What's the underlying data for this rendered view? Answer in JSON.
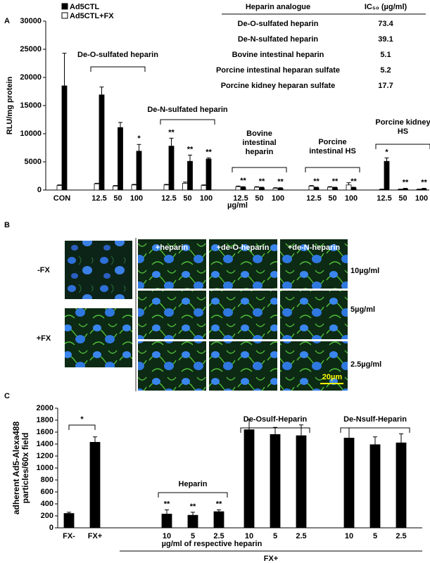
{
  "panel_labels": [
    "A",
    "B",
    "C"
  ],
  "ic50_table": {
    "columns": [
      "Heparin analogue",
      "IC₅₀ (µg/ml)"
    ],
    "rows": [
      [
        "De-O-sulfated heparin",
        "73.4"
      ],
      [
        "De-N-sulfated heparin",
        "39.1"
      ],
      [
        "Bovine intestinal heparin",
        "5.1"
      ],
      [
        "Porcine intestinal heparan sulfate",
        "5.2"
      ],
      [
        "Porcine kidney heparan sulfate",
        "17.7"
      ]
    ]
  },
  "images": {
    "left_row_labels": [
      "-FX",
      "+FX"
    ],
    "column_labels": [
      "+heparin",
      "+de-O-heparin",
      "+de-N-heparin"
    ],
    "row_labels": [
      "10µg/ml",
      "5µg/ml",
      "2.5µg/ml"
    ],
    "scale_bar": "20µm"
  },
  "chart_data": [
    {
      "type": "bar",
      "ylabel": "RLU/mg protein",
      "xlabel": "µg/ml",
      "ylim": [
        0,
        30000
      ],
      "yticks": [
        0,
        5000,
        10000,
        15000,
        20000,
        25000,
        30000
      ],
      "groups": [
        {
          "name": null,
          "categories": [
            "CON"
          ]
        },
        {
          "name": "De-O-sulfated heparin",
          "categories": [
            "12.5",
            "50",
            "100"
          ]
        },
        {
          "name": "De-N-sulfated heparin",
          "categories": [
            "12.5",
            "50",
            "100"
          ]
        },
        {
          "name": "Bovine intestinal heparin",
          "categories": [
            "12.5",
            "50",
            "100"
          ]
        },
        {
          "name": "Porcine intestinal HS",
          "categories": [
            "12.5",
            "50",
            "100"
          ]
        },
        {
          "name": "Porcine kidney HS",
          "categories": [
            "12.5",
            "50",
            "100"
          ]
        }
      ],
      "series": [
        {
          "name": "Ad5CTL",
          "color": "#000000",
          "values": [
            18500,
            16900,
            11100,
            6900,
            7800,
            5100,
            5500,
            500,
            400,
            300,
            400,
            400,
            400,
            5100,
            200,
            200
          ],
          "errors": [
            5800,
            1400,
            900,
            1200,
            1400,
            1100,
            200,
            100,
            100,
            100,
            100,
            100,
            100,
            600,
            100,
            100
          ],
          "significance": [
            null,
            null,
            null,
            "*",
            "**",
            "**",
            "**",
            "**",
            "**",
            "**",
            "**",
            "**",
            "**",
            "*",
            "**",
            "**"
          ]
        },
        {
          "name": "Ad5CTL+FX",
          "color": "#ffffff",
          "values": [
            800,
            1100,
            700,
            900,
            900,
            1200,
            800,
            600,
            500,
            300,
            700,
            500,
            900,
            100,
            100,
            100
          ],
          "errors": [
            100,
            100,
            100,
            100,
            100,
            200,
            100,
            100,
            100,
            100,
            100,
            100,
            400,
            50,
            50,
            50
          ]
        }
      ]
    },
    {
      "type": "bar",
      "ylabel": "adherent Ad5-Alexa488 particles/60x field",
      "xlabel": "µg/ml of respective heparin",
      "x_group_label": "FX+",
      "ylim": [
        0,
        2000
      ],
      "yticks": [
        0,
        200,
        400,
        600,
        800,
        1000,
        1200,
        1400,
        1600,
        1800,
        2000
      ],
      "comparison_label": "*",
      "groups": [
        {
          "name": null,
          "categories": [
            "FX-",
            "FX+"
          ]
        },
        {
          "name": "Heparin",
          "categories": [
            "10",
            "5",
            "2.5"
          ]
        },
        {
          "name": "De-Osulf-Heparin",
          "categories": [
            "10",
            "5",
            "2.5"
          ]
        },
        {
          "name": "De-Nsulf-Heparin",
          "categories": [
            "10",
            "5",
            "2.5"
          ]
        }
      ],
      "series": [
        {
          "color": "#000000",
          "values": [
            240,
            1430,
            230,
            210,
            270,
            1640,
            1560,
            1540,
            1500,
            1390,
            1420
          ],
          "errors": [
            20,
            90,
            70,
            50,
            30,
            170,
            120,
            180,
            170,
            130,
            150
          ],
          "significance": [
            null,
            null,
            "**",
            "**",
            "**",
            null,
            null,
            null,
            null,
            null,
            null
          ]
        }
      ]
    }
  ]
}
